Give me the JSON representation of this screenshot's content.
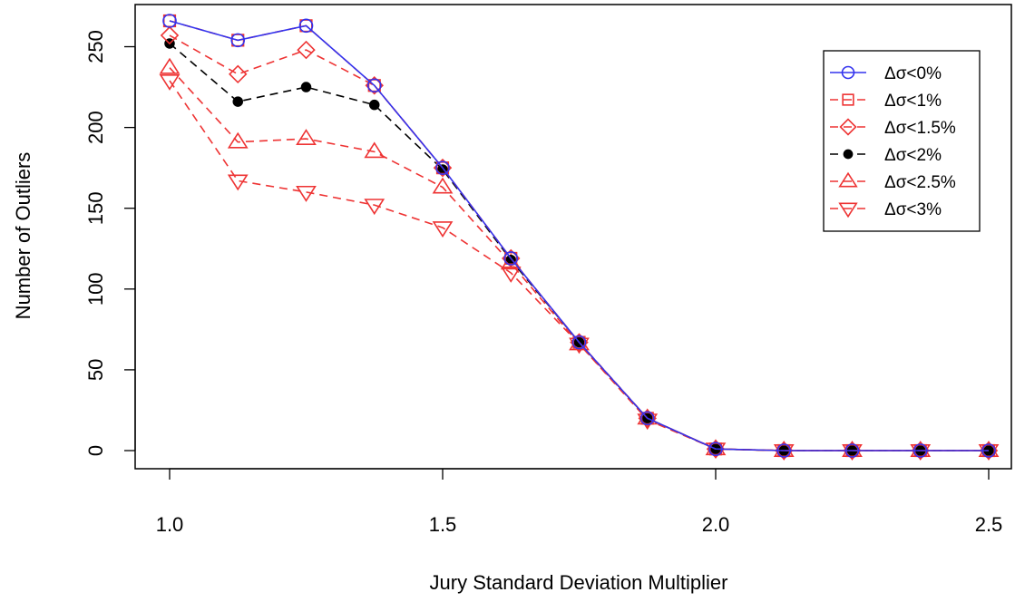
{
  "chart_data": {
    "type": "line",
    "title": "",
    "xlabel": "Jury Standard Deviation Multiplier",
    "ylabel": "Number of Outliers",
    "x": [
      1.0,
      1.125,
      1.25,
      1.375,
      1.5,
      1.625,
      1.75,
      1.875,
      2.0,
      2.125,
      2.25,
      2.375,
      2.5
    ],
    "xlim": [
      1.0,
      2.5
    ],
    "ylim": [
      0,
      266
    ],
    "x_ticks": [
      {
        "value": 1.0,
        "label": "1.0"
      },
      {
        "value": 1.5,
        "label": "1.5"
      },
      {
        "value": 2.0,
        "label": "2.0"
      },
      {
        "value": 2.5,
        "label": "2.5"
      }
    ],
    "y_ticks": [
      {
        "value": 0,
        "label": "0"
      },
      {
        "value": 50,
        "label": "50"
      },
      {
        "value": 100,
        "label": "100"
      },
      {
        "value": 150,
        "label": "150"
      },
      {
        "value": 200,
        "label": "200"
      },
      {
        "value": 250,
        "label": "250"
      }
    ],
    "grid": false,
    "legend_position": "top-right",
    "series": [
      {
        "name": "Δσ<0%",
        "color": "#3333ee",
        "line": "solid",
        "marker": "circle",
        "values": [
          266,
          254,
          263,
          226,
          175,
          119,
          67,
          20,
          1,
          0,
          0,
          0,
          0
        ]
      },
      {
        "name": "Δσ<1%",
        "color": "#ee3333",
        "line": "dashed",
        "marker": "square",
        "values": [
          266,
          254,
          263,
          226,
          175,
          119,
          67,
          20,
          1,
          0,
          0,
          0,
          0
        ]
      },
      {
        "name": "Δσ<1.5%",
        "color": "#ee3333",
        "line": "dashed",
        "marker": "diamond",
        "values": [
          257,
          233,
          248,
          226,
          175,
          119,
          67,
          20,
          1,
          0,
          0,
          0,
          0
        ]
      },
      {
        "name": "Δσ<2%",
        "color": "#000000",
        "line": "dashed",
        "marker": "dot",
        "values": [
          252,
          216,
          225,
          214,
          174,
          118,
          67,
          20,
          1,
          0,
          0,
          0,
          0
        ]
      },
      {
        "name": "Δσ<2.5%",
        "color": "#ee3333",
        "line": "dashed",
        "marker": "triangle-up",
        "values": [
          237,
          191,
          193,
          185,
          163,
          116,
          66,
          20,
          1,
          0,
          0,
          0,
          0
        ]
      },
      {
        "name": "Δσ<3%",
        "color": "#ee3333",
        "line": "dashed",
        "marker": "triangle-down",
        "values": [
          229,
          167,
          160,
          152,
          138,
          110,
          66,
          19,
          1,
          0,
          0,
          0,
          0
        ]
      }
    ]
  }
}
